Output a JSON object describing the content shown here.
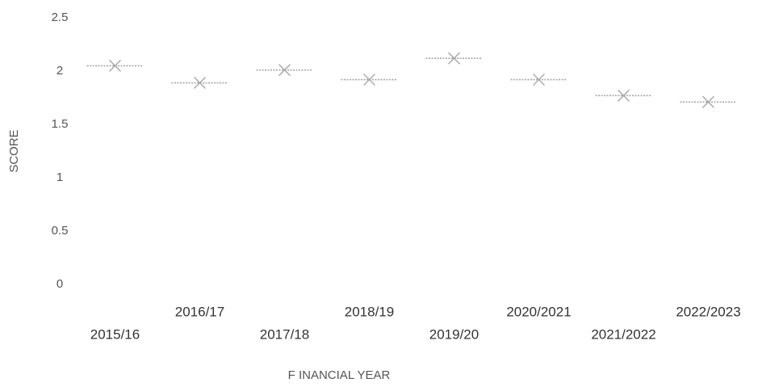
{
  "chart_data": {
    "type": "scatter",
    "categories": [
      "2015/16",
      "2016/17",
      "2017/18",
      "2018/19",
      "2019/20",
      "2020/2021",
      "2021/2022",
      "2022/2023"
    ],
    "values": [
      2.05,
      1.89,
      2.01,
      1.92,
      2.12,
      1.92,
      1.77,
      1.71
    ],
    "color": "#a6a6a6",
    "ylim": [
      0,
      2.5
    ],
    "yticks": [
      0,
      0.5,
      1,
      1.5,
      2,
      2.5
    ],
    "x_label": "F INANCIAL YEAR",
    "y_label": "SCORE",
    "grid": false
  }
}
